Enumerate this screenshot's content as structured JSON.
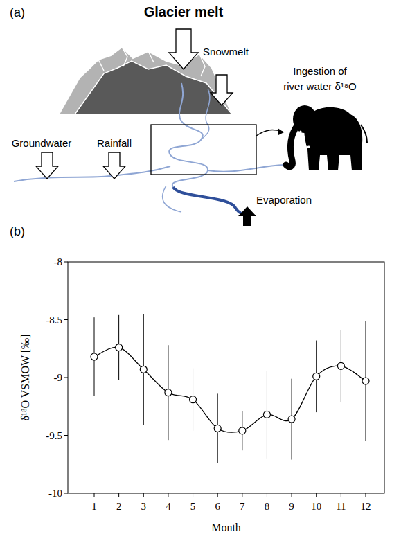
{
  "panel_a": {
    "label": "(a)",
    "glacier_melt": "Glacier melt",
    "snowmelt": "Snowmelt",
    "groundwater": "Groundwater",
    "rainfall": "Rainfall",
    "ingestion": [
      "Ingestion of",
      "river water δ¹⁸O"
    ],
    "evaporation": "Evaporation"
  },
  "panel_b": {
    "label": "(b)"
  },
  "chart_data": {
    "type": "line",
    "x_label": "Month",
    "y_label": "δ¹⁸O VSMOW [‰]",
    "categories": [
      "1",
      "2",
      "3",
      "4",
      "5",
      "6",
      "7",
      "8",
      "9",
      "10",
      "11",
      "12"
    ],
    "values": [
      -8.82,
      -8.74,
      -8.93,
      -9.13,
      -9.19,
      -9.44,
      -9.46,
      -9.32,
      -9.36,
      -8.99,
      -8.9,
      -9.03
    ],
    "errors": [
      0.34,
      0.28,
      0.48,
      0.41,
      0.27,
      0.3,
      0.17,
      0.38,
      0.35,
      0.31,
      0.31,
      0.52
    ],
    "ylim": [
      -10,
      -8
    ],
    "yticks": [
      -10,
      -9.5,
      -9,
      -8.5,
      -8
    ],
    "color": "#000000",
    "marker": "circle",
    "line_style": "solid",
    "grid": false
  }
}
